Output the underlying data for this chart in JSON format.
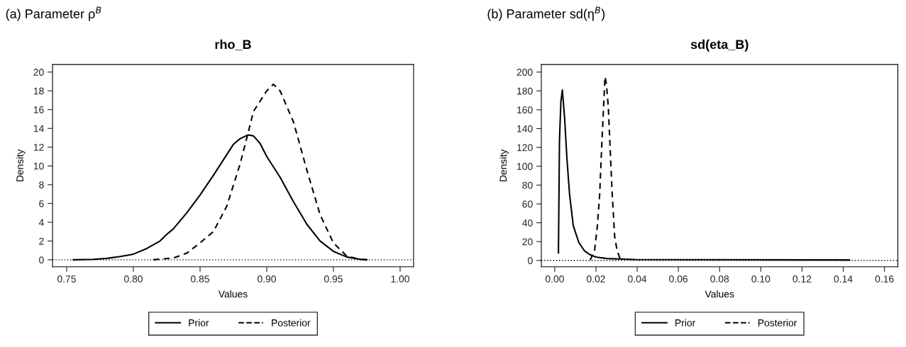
{
  "chart_data": [
    {
      "type": "line",
      "title": "rho_B",
      "xlabel": "Values",
      "ylabel": "Density",
      "annotations": [
        "(a) Parameter ρ$^{B}$"
      ],
      "xlim": [
        0.7394,
        1.0101
      ],
      "xticks": [
        {
          "value": 0.75,
          "label": "0.75"
        },
        {
          "value": 0.8,
          "label": "0.80"
        },
        {
          "value": 0.85,
          "label": "0.85"
        },
        {
          "value": 0.9,
          "label": "0.90"
        },
        {
          "value": 0.95,
          "label": "0.95"
        },
        {
          "value": 1.0,
          "label": "1.00"
        }
      ],
      "ylim": [
        -0.75,
        20.8
      ],
      "yticks": [
        0,
        2,
        4,
        6,
        8,
        10,
        12,
        14,
        16,
        18,
        20
      ],
      "grid": false,
      "legend": "bottom",
      "ref_lines": [
        {
          "axis": "y",
          "value": 0,
          "color": "#000000",
          "line_style": "dotted"
        }
      ],
      "series": [
        {
          "name": "Prior",
          "color": "#000000",
          "line_style": "solid",
          "x": [
            0.755,
            0.77,
            0.78,
            0.79,
            0.8,
            0.81,
            0.82,
            0.825,
            0.83,
            0.84,
            0.85,
            0.86,
            0.87,
            0.875,
            0.88,
            0.886,
            0.89,
            0.895,
            0.9,
            0.91,
            0.92,
            0.925,
            0.93,
            0.94,
            0.95,
            0.96,
            0.97,
            0.975
          ],
          "values": [
            0,
            0.05,
            0.15,
            0.35,
            0.6,
            1.2,
            2.0,
            2.7,
            3.3,
            5.0,
            6.9,
            9.0,
            11.2,
            12.3,
            12.9,
            13.3,
            13.2,
            12.4,
            11.0,
            8.8,
            6.2,
            5.0,
            3.8,
            2.0,
            0.9,
            0.3,
            0.05,
            0
          ]
        },
        {
          "name": "Posterior",
          "color": "#000000",
          "line_style": "dashed",
          "x": [
            0.815,
            0.83,
            0.84,
            0.85,
            0.86,
            0.87,
            0.88,
            0.886,
            0.89,
            0.9,
            0.905,
            0.91,
            0.92,
            0.93,
            0.94,
            0.95,
            0.96,
            0.97,
            0.978
          ],
          "values": [
            0,
            0.2,
            0.7,
            1.8,
            3.0,
            5.7,
            10.2,
            13.5,
            15.8,
            18.0,
            18.7,
            18.0,
            14.7,
            9.6,
            4.8,
            1.8,
            0.4,
            0.05,
            0
          ]
        }
      ]
    },
    {
      "type": "line",
      "title": "sd(eta_B)",
      "xlabel": "Values",
      "ylabel": "Density",
      "annotations": [
        "(b) Parameter sd(η$^{B}$)"
      ],
      "xlim": [
        -0.0065,
        0.1665
      ],
      "xticks": [
        {
          "value": 0.0,
          "label": "0.00"
        },
        {
          "value": 0.02,
          "label": "0.02"
        },
        {
          "value": 0.04,
          "label": "0.04"
        },
        {
          "value": 0.06,
          "label": "0.06"
        },
        {
          "value": 0.08,
          "label": "0.08"
        },
        {
          "value": 0.1,
          "label": "0.10"
        },
        {
          "value": 0.12,
          "label": "0.12"
        },
        {
          "value": 0.14,
          "label": "0.14"
        },
        {
          "value": 0.16,
          "label": "0.16"
        }
      ],
      "ylim": [
        -6.8,
        208
      ],
      "yticks": [
        0,
        20,
        40,
        60,
        80,
        100,
        120,
        140,
        160,
        180,
        200
      ],
      "grid": false,
      "legend": "bottom",
      "ref_lines": [
        {
          "axis": "y",
          "value": 0,
          "color": "#000000",
          "line_style": "dotted"
        }
      ],
      "series": [
        {
          "name": "Prior",
          "color": "#000000",
          "line_style": "solid",
          "x": [
            0.0018,
            0.0023,
            0.003,
            0.0037,
            0.0048,
            0.0059,
            0.0072,
            0.009,
            0.0117,
            0.0145,
            0.0172,
            0.02,
            0.0255,
            0.039,
            0.143
          ],
          "values": [
            8,
            127,
            169,
            181,
            151,
            109,
            70,
            37,
            19,
            10,
            6,
            3.6,
            2,
            1,
            0.5
          ]
        },
        {
          "name": "Posterior",
          "color": "#000000",
          "line_style": "dashed",
          "x": [
            0.0172,
            0.0193,
            0.0207,
            0.0218,
            0.0228,
            0.0237,
            0.0244,
            0.0251,
            0.026,
            0.0269,
            0.0279,
            0.0291,
            0.0303,
            0.0317,
            0.0324
          ],
          "values": [
            0.5,
            10,
            37,
            70,
            121,
            163,
            195,
            187,
            163,
            118,
            70,
            25,
            10,
            2,
            0.5
          ]
        }
      ]
    }
  ]
}
